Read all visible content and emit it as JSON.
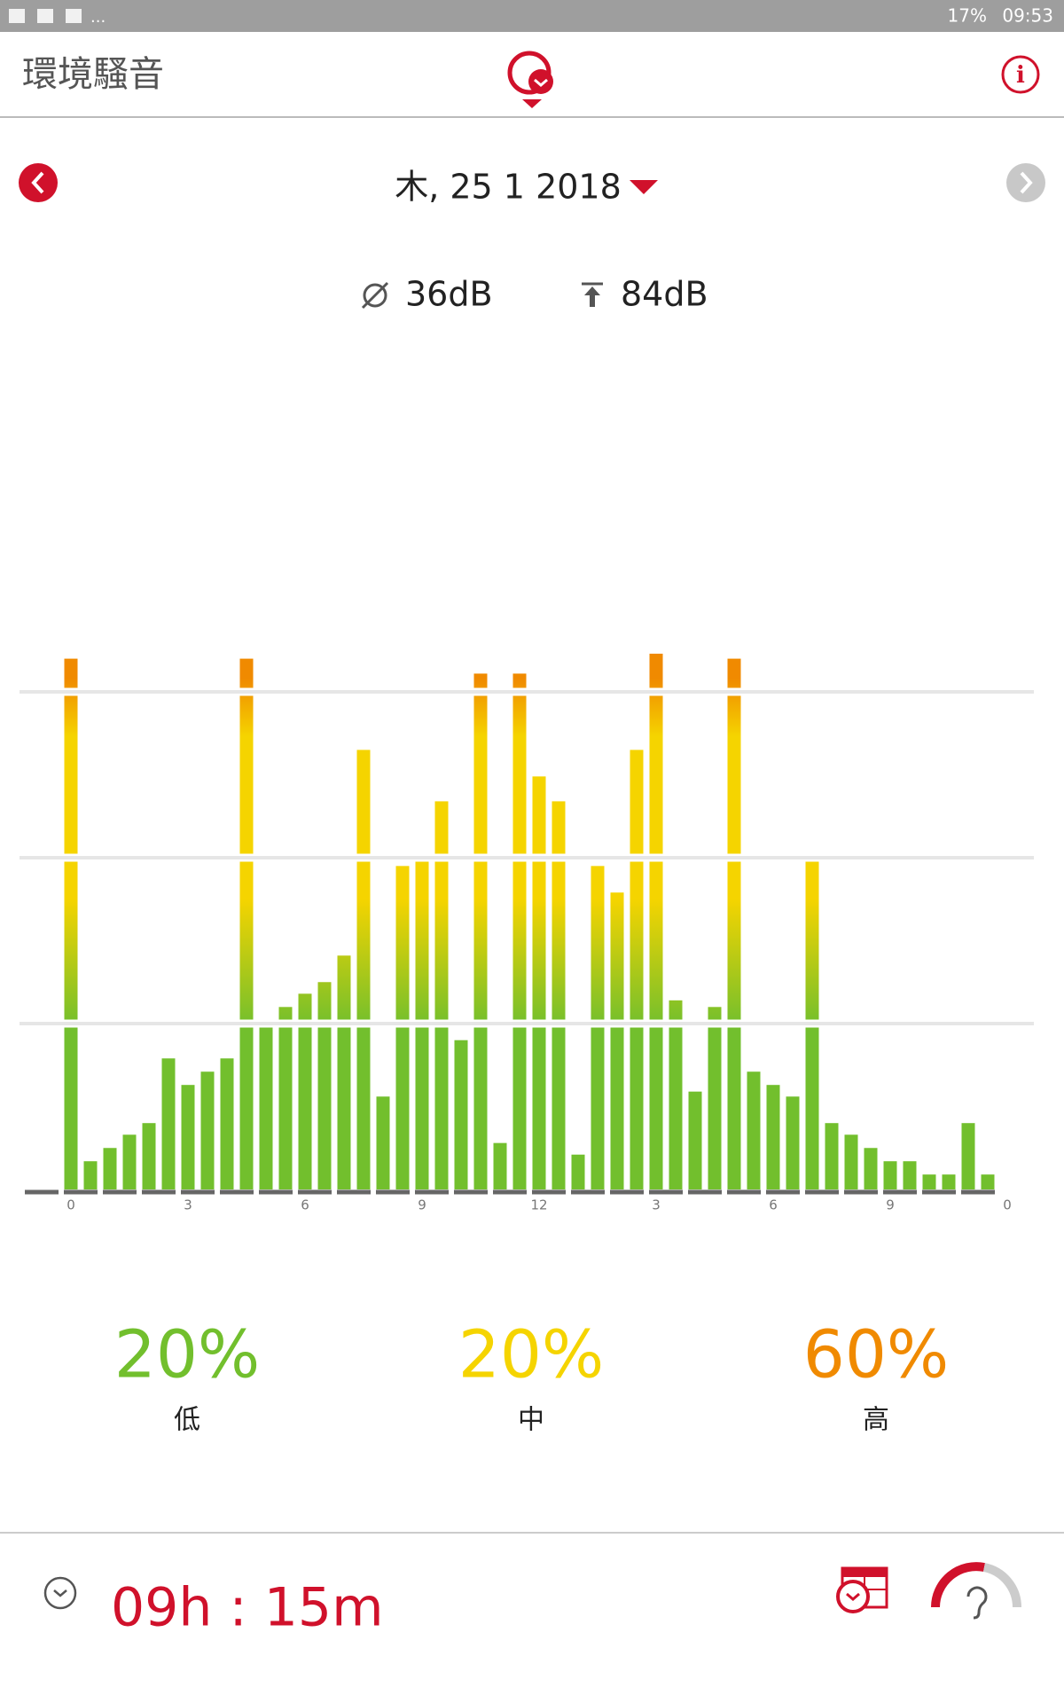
{
  "status_bar": {
    "more": "...",
    "battery": "17%",
    "time": "09:53"
  },
  "header": {
    "title": "環境騷音"
  },
  "date": "木, 25 1 2018",
  "stats": {
    "average": "36dB",
    "peak": "84dB"
  },
  "chart_data": {
    "type": "bar",
    "x": [
      0,
      0.5,
      1,
      1.5,
      2,
      2.5,
      3,
      3.5,
      4,
      4.5,
      5,
      5.5,
      6,
      6.5,
      7,
      7.5,
      8,
      8.5,
      9,
      9.5,
      10,
      10.5,
      11,
      11.5,
      12,
      12.5,
      13,
      13.5,
      14,
      14.5,
      15,
      15.5,
      16,
      16.5,
      17,
      17.5,
      18,
      18.5,
      19,
      19.5,
      20,
      20.5,
      21,
      21.5,
      22,
      22.5,
      23,
      23.5
    ],
    "values": [
      3.2,
      0.17,
      0.25,
      0.33,
      0.4,
      0.79,
      0.63,
      0.71,
      0.79,
      3.2,
      1.02,
      1.1,
      1.18,
      1.25,
      1.41,
      2.65,
      0.56,
      1.95,
      2.02,
      2.34,
      0.9,
      3.11,
      0.28,
      3.11,
      2.49,
      2.34,
      0.21,
      1.95,
      1.79,
      2.65,
      3.23,
      1.14,
      0.59,
      1.1,
      3.2,
      0.71,
      0.63,
      0.56,
      2.02,
      0.4,
      0.33,
      0.25,
      0.17,
      0.17,
      0.09,
      0.09,
      0.4,
      0.09
    ],
    "xlim": [
      0,
      24
    ],
    "xticks": [
      {
        "value": 0,
        "label": "0"
      },
      3,
      6,
      9,
      12,
      {
        "value": 15,
        "label": "3"
      },
      {
        "value": 18,
        "label": "6"
      },
      {
        "value": 21,
        "label": "9"
      },
      {
        "value": 24,
        "label": "0"
      }
    ],
    "ylim": [
      0,
      3.5
    ],
    "yticks": [
      1,
      2,
      3
    ],
    "grid": true,
    "colors": {
      "low": "#72bf2d",
      "mid": "#f5d400",
      "high": "#f08a00"
    }
  },
  "levels": [
    {
      "value": "20%",
      "label": "低",
      "color": "#72bf2d"
    },
    {
      "value": "20%",
      "label": "中",
      "color": "#f5d400"
    },
    {
      "value": "60%",
      "label": "高",
      "color": "#f08a00"
    }
  ],
  "footer": {
    "duration": "09h : 15m"
  }
}
